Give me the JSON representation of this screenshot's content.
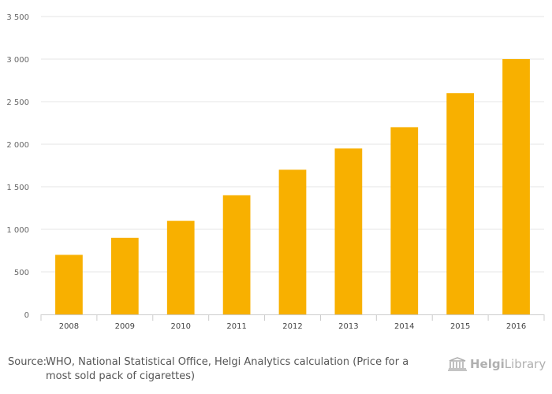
{
  "chart_data": {
    "type": "bar",
    "categories": [
      "2008",
      "2009",
      "2010",
      "2011",
      "2012",
      "2013",
      "2014",
      "2015",
      "2016"
    ],
    "values": [
      700,
      900,
      1100,
      1400,
      1700,
      1950,
      2200,
      2600,
      3000
    ],
    "ylim": [
      0,
      3500
    ],
    "yticks": [
      0,
      500,
      1000,
      1500,
      2000,
      2500,
      3000,
      3500
    ],
    "ytick_labels": [
      "0",
      "500",
      "1 000",
      "1 500",
      "2 000",
      "2 500",
      "3 000",
      "3 500"
    ],
    "bar_color": "#f8b000",
    "grid": true
  },
  "footer": {
    "source_label": "Source:",
    "source_text": "WHO, National Statistical Office, Helgi Analytics calculation (Price for a most sold pack of cigarettes)"
  },
  "logo": {
    "text_a": "Helgi",
    "text_b": "Library",
    "icon": "library-building-icon",
    "color": "#b0b0b0"
  }
}
